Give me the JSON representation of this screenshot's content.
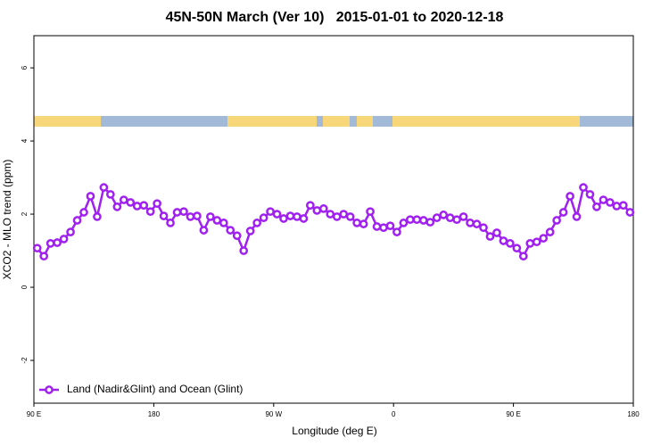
{
  "chart_data": {
    "type": "line",
    "title": "45N-50N March (Ver 10)   2015-01-01 to 2020-12-18",
    "x_label": "Longitude (deg E)",
    "y_label": "XCO2 - MLO trend (ppm)",
    "xlim": [
      90,
      540
    ],
    "xticks": [
      {
        "value": 90,
        "label": "90 E"
      },
      180,
      {
        "value": 270,
        "label": "90 W"
      },
      {
        "value": 360,
        "label": "0"
      },
      {
        "value": 450,
        "label": "90 E"
      },
      {
        "value": 540,
        "label": "180"
      }
    ],
    "ylim": [
      -3.17,
      6.88
    ],
    "yticks": [
      -2,
      0,
      2,
      4,
      6
    ],
    "legend": "bottom-left",
    "x": [
      92.5,
      97.5,
      102.5,
      107.5,
      112.5,
      117.5,
      122.5,
      127.5,
      132.5,
      137.5,
      142.5,
      147.5,
      152.5,
      157.5,
      162.5,
      167.5,
      172.5,
      177.5,
      182.5,
      187.5,
      192.5,
      197.5,
      202.5,
      207.5,
      212.5,
      217.5,
      222.5,
      227.5,
      232.5,
      237.5,
      242.5,
      247.5,
      252.5,
      257.5,
      262.5,
      267.5,
      272.5,
      277.5,
      282.5,
      287.5,
      292.5,
      297.5,
      302.5,
      307.5,
      312.5,
      317.5,
      322.5,
      327.5,
      332.5,
      337.5,
      342.5,
      347.5,
      352.5,
      357.5,
      362.5,
      367.5,
      372.5,
      377.5,
      382.5,
      387.5,
      392.5,
      397.5,
      402.5,
      407.5,
      412.5,
      417.5,
      422.5,
      427.5,
      432.5,
      437.5,
      442.5,
      447.5,
      452.5,
      457.5,
      462.5,
      467.5,
      472.5,
      477.5,
      482.5,
      487.5,
      492.5,
      497.5,
      502.5,
      507.5,
      512.5,
      517.5,
      522.5,
      527.5,
      532.5,
      537.5
    ],
    "series": [
      {
        "name": "Land (Nadir&Glint) and Ocean (Glint)",
        "color": "#a020f0",
        "values": [
          1.07,
          0.85,
          1.2,
          1.22,
          1.32,
          1.51,
          1.83,
          2.05,
          2.49,
          1.93,
          2.73,
          2.54,
          2.2,
          2.39,
          2.32,
          2.22,
          2.24,
          2.07,
          2.29,
          1.95,
          1.76,
          2.05,
          2.07,
          1.93,
          1.95,
          1.56,
          1.93,
          1.83,
          1.76,
          1.56,
          1.41,
          1.0,
          1.54,
          1.76,
          1.9,
          2.07,
          2.0,
          1.88,
          1.95,
          1.93,
          1.88,
          2.24,
          2.1,
          2.15,
          2.0,
          1.93,
          2.0,
          1.93,
          1.76,
          1.73,
          2.07,
          1.66,
          1.63,
          1.68,
          1.51,
          1.76,
          1.85,
          1.85,
          1.83,
          1.78,
          1.9,
          1.98,
          1.9,
          1.85,
          1.93,
          1.76,
          1.73,
          1.63,
          1.39,
          1.49,
          1.27,
          1.2,
          1.07,
          0.85,
          1.2,
          1.24,
          1.34,
          1.51,
          1.83,
          2.05,
          2.49,
          1.93,
          2.73,
          2.54,
          2.2,
          2.39,
          2.32,
          2.22,
          2.24,
          2.05
        ]
      }
    ]
  }
}
